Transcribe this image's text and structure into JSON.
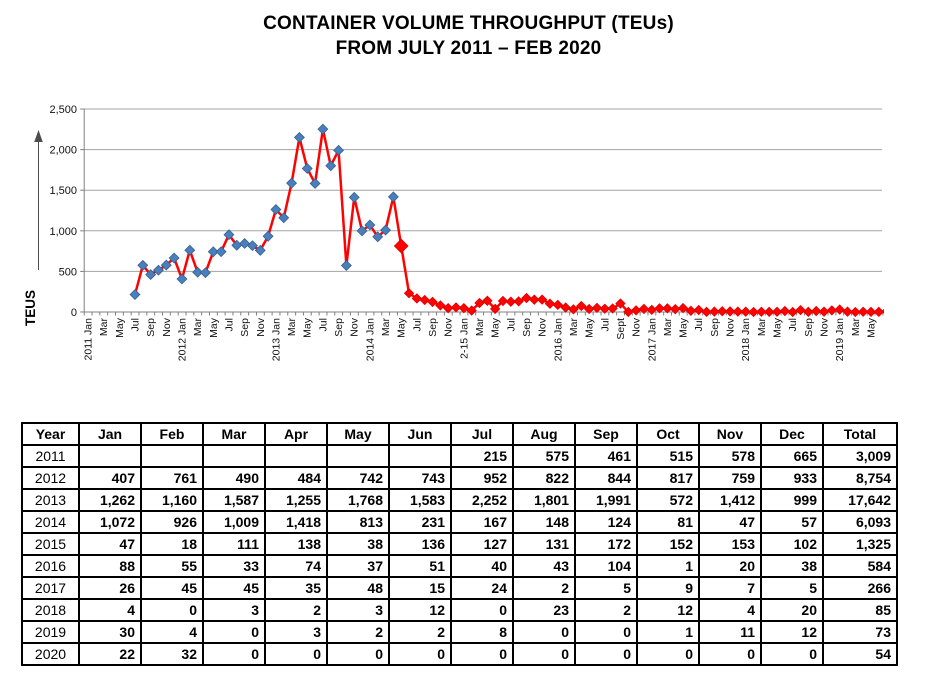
{
  "title": {
    "line1": "CONTAINER VOLUME THROUGHPUT (TEUs)",
    "line2": "FROM JULY 2011 –  FEB 2020"
  },
  "chart_data": {
    "type": "line",
    "title": "CONTAINER VOLUME THROUGHPUT (TEUs) FROM JULY 2011 – FEB 2020",
    "ylabel": "TEUS",
    "ylim": [
      0,
      2500
    ],
    "ytick_values": [
      0,
      500,
      1000,
      1500,
      2000,
      2500
    ],
    "ytick_labels": [
      "0",
      "500",
      "1,000",
      "1,500",
      "2,000",
      "2,500"
    ],
    "grid": "horizontal-only",
    "legend": "none",
    "line_color": "#fe0202",
    "marker_style": {
      "blue_fill": "#4a7ebc",
      "blue_edge": "#36618f",
      "red_fill": "#fe0202",
      "red_edge": "#e00000",
      "blue_count": 34,
      "first_red_larger": true
    },
    "x_axis_visible_labels": [
      "2011 Jan",
      "Mar",
      "May",
      "Jul",
      "Sep",
      "Nov",
      "2012 Jan",
      "Mar",
      "May",
      "Jul",
      "Sep",
      "Nov",
      "2013 Jan",
      "Mar",
      "May",
      "Jul",
      "Sep",
      "Nov",
      "2014 Jan",
      "Mar",
      "May",
      "Jul",
      "Sep",
      "Nov",
      "2-15 Jan",
      "Mar",
      "May",
      "Jul",
      "Sep",
      "Nov",
      "2016 Jan",
      "Mar",
      "May",
      "Jul",
      "Sept",
      "Nov",
      "2017 Jan",
      "Mar",
      "May",
      "Jul",
      "Sep",
      "Nov",
      "2018 Jan",
      "Mar",
      "May",
      "Jul",
      "Sep",
      "Nov",
      "2019 Jan",
      "Mar",
      "May"
    ],
    "series": [
      {
        "name": "Container volume (TEUs)",
        "first_month": "2011 Jul",
        "last_month": "2020 Feb",
        "values": [
          215,
          575,
          461,
          515,
          578,
          665,
          407,
          761,
          490,
          484,
          742,
          743,
          952,
          822,
          844,
          817,
          759,
          933,
          1262,
          1160,
          1587,
          1255,
          1768,
          1583,
          2252,
          1801,
          1991,
          572,
          1412,
          999,
          1072,
          926,
          1009,
          1418,
          813,
          231,
          167,
          148,
          124,
          81,
          47,
          57,
          47,
          18,
          111,
          138,
          38,
          136,
          127,
          131,
          172,
          152,
          153,
          102,
          88,
          55,
          33,
          74,
          37,
          51,
          40,
          43,
          104,
          1,
          20,
          38,
          26,
          45,
          45,
          35,
          48,
          15,
          24,
          2,
          5,
          9,
          7,
          5,
          4,
          0,
          3,
          2,
          3,
          12,
          0,
          23,
          2,
          12,
          4,
          20,
          30,
          4,
          0,
          3,
          2,
          2,
          8,
          0,
          0,
          1,
          11,
          12,
          22,
          32
        ]
      }
    ],
    "plot_anomaly": {
      "month": "2013 Apr",
      "table_value": 1255,
      "plotted_value": 2150,
      "series_index": 21
    }
  },
  "table": {
    "headers": [
      "Year",
      "Jan",
      "Feb",
      "Mar",
      "Apr",
      "May",
      "Jun",
      "Jul",
      "Aug",
      "Sep",
      "Oct",
      "Nov",
      "Dec",
      "Total"
    ],
    "rows": [
      {
        "year": "2011",
        "cells": [
          "",
          "",
          "",
          "",
          "",
          "",
          "215",
          "575",
          "461",
          "515",
          "578",
          "665",
          "3,009"
        ]
      },
      {
        "year": "2012",
        "cells": [
          "407",
          "761",
          "490",
          "484",
          "742",
          "743",
          "952",
          "822",
          "844",
          "817",
          "759",
          "933",
          "8,754"
        ]
      },
      {
        "year": "2013",
        "cells": [
          "1,262",
          "1,160",
          "1,587",
          "1,255",
          "1,768",
          "1,583",
          "2,252",
          "1,801",
          "1,991",
          "572",
          "1,412",
          "999",
          "17,642"
        ]
      },
      {
        "year": "2014",
        "cells": [
          "1,072",
          "926",
          "1,009",
          "1,418",
          "813",
          "231",
          "167",
          "148",
          "124",
          "81",
          "47",
          "57",
          "6,093"
        ]
      },
      {
        "year": "2015",
        "cells": [
          "47",
          "18",
          "111",
          "138",
          "38",
          "136",
          "127",
          "131",
          "172",
          "152",
          "153",
          "102",
          "1,325"
        ]
      },
      {
        "year": "2016",
        "cells": [
          "88",
          "55",
          "33",
          "74",
          "37",
          "51",
          "40",
          "43",
          "104",
          "1",
          "20",
          "38",
          "584"
        ]
      },
      {
        "year": "2017",
        "cells": [
          "26",
          "45",
          "45",
          "35",
          "48",
          "15",
          "24",
          "2",
          "5",
          "9",
          "7",
          "5",
          "266"
        ]
      },
      {
        "year": "2018",
        "cells": [
          "4",
          "0",
          "3",
          "2",
          "3",
          "12",
          "0",
          "23",
          "2",
          "12",
          "4",
          "20",
          "85"
        ]
      },
      {
        "year": "2019",
        "cells": [
          "30",
          "4",
          "0",
          "3",
          "2",
          "2",
          "8",
          "0",
          "0",
          "1",
          "11",
          "12",
          "73"
        ]
      },
      {
        "year": "2020",
        "cells": [
          "22",
          "32",
          "0",
          "0",
          "0",
          "0",
          "0",
          "0",
          "0",
          "0",
          "0",
          "0",
          "54"
        ]
      }
    ]
  }
}
